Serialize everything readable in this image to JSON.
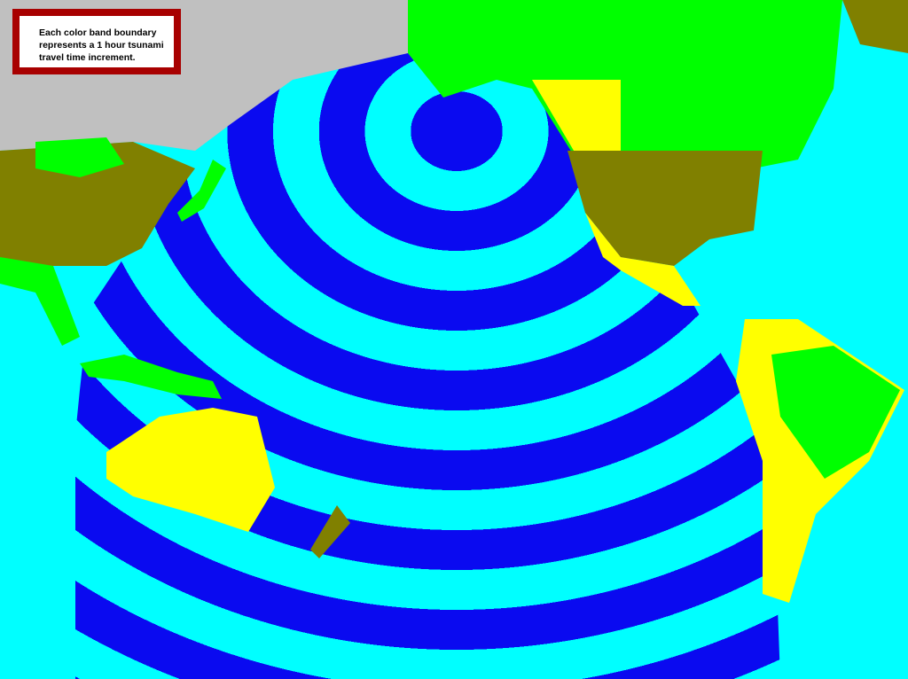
{
  "legend": {
    "text": "Each color band boundary represents a 1 hour tsunami travel time increment."
  },
  "colors": {
    "band_dark": "#0a0af0",
    "band_light": "#00ffff",
    "ocean": "#00ffff",
    "land_green": "#00ff00",
    "land_yellow": "#ffff00",
    "land_olive": "#808000",
    "land_grey": "#c0c0c0",
    "legend_border": "#a80000"
  },
  "band_interval_hours": 1
}
